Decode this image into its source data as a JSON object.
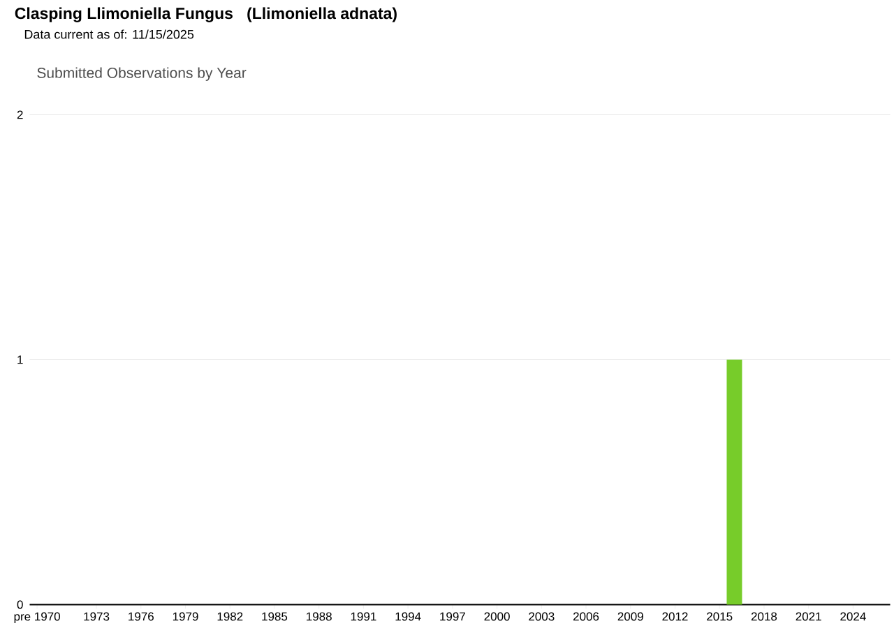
{
  "chart_data": {
    "type": "bar",
    "title": "Clasping Llimoniella Fungus   (Llimoniella adnata)",
    "subtitle": "Data current as of: 11/15/2025",
    "annotations": [
      "Submitted Observations by Year"
    ],
    "categories": [
      "pre 1970",
      null,
      null,
      null,
      "1973",
      null,
      null,
      "1976",
      null,
      null,
      "1979",
      null,
      null,
      "1982",
      null,
      null,
      "1985",
      null,
      null,
      "1988",
      null,
      null,
      "1991",
      null,
      null,
      "1994",
      null,
      null,
      "1997",
      null,
      null,
      "2000",
      null,
      null,
      "2003",
      null,
      null,
      "2006",
      null,
      null,
      "2009",
      null,
      null,
      "2012",
      null,
      null,
      "2015",
      null,
      null,
      "2018",
      null,
      null,
      "2021",
      null,
      null,
      "2024",
      null,
      null
    ],
    "values": [
      0,
      0,
      0,
      0,
      0,
      0,
      0,
      0,
      0,
      0,
      0,
      0,
      0,
      0,
      0,
      0,
      0,
      0,
      0,
      0,
      0,
      0,
      0,
      0,
      0,
      0,
      0,
      0,
      0,
      0,
      0,
      0,
      0,
      0,
      0,
      0,
      0,
      0,
      0,
      0,
      0,
      0,
      0,
      0,
      0,
      0,
      0,
      1,
      0,
      0,
      0,
      0,
      0,
      0,
      0,
      0,
      0,
      0
    ],
    "color": "#77cc2a",
    "ylim": [
      0,
      2
    ],
    "yticks": [
      0,
      1,
      2
    ],
    "grid": "y"
  }
}
